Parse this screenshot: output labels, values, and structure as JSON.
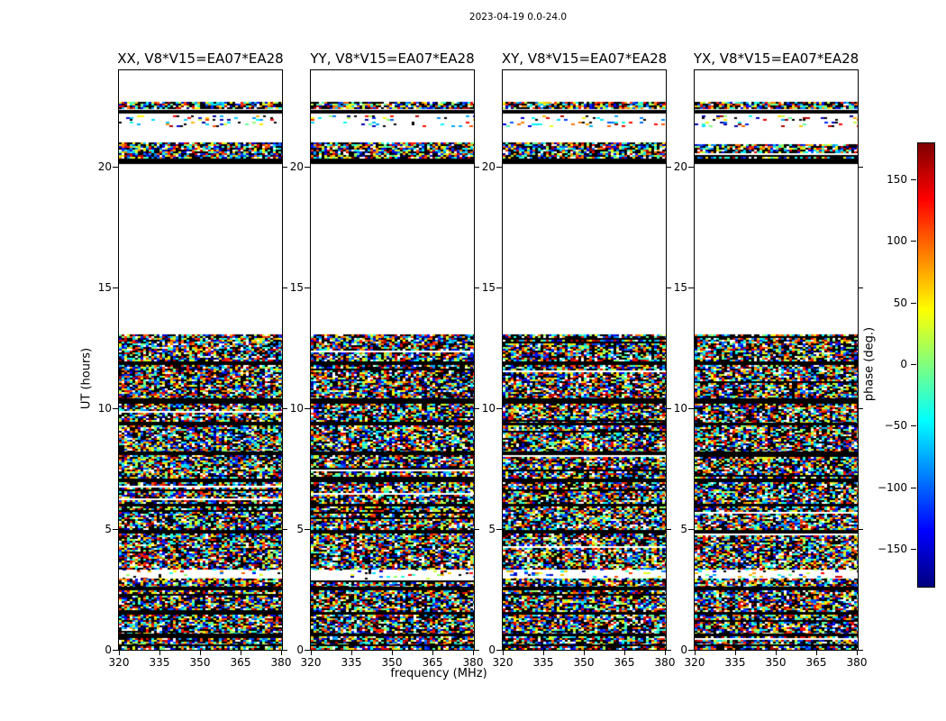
{
  "chart_data": {
    "type": "heatmap",
    "title": "2023-04-19 0.0-24.0",
    "xlabel": "frequency (MHz)",
    "ylabel": "UT (hours)",
    "xlim": [
      320,
      380
    ],
    "ylim": [
      0,
      24
    ],
    "xticks": [
      320,
      335,
      350,
      365,
      380
    ],
    "yticks": [
      0,
      5,
      10,
      15,
      20
    ],
    "panels": [
      {
        "id": "XX",
        "label": "XX, V8*V15=EA07*EA28"
      },
      {
        "id": "YY",
        "label": "YY, V8*V15=EA07*EA28"
      },
      {
        "id": "XY",
        "label": "XY, V8*V15=EA07*EA28"
      },
      {
        "id": "YX",
        "label": "YX, V8*V15=EA07*EA28"
      }
    ],
    "colorbar": {
      "label": "phase (deg.)",
      "vmin": -180,
      "vmax": 180,
      "ticks": [
        150,
        100,
        50,
        0,
        -50,
        -100,
        -150
      ],
      "colormap": "jet"
    },
    "values_description": "random interferometric phase speckle; bands give UT-hour ranges that contain data",
    "bands": [
      {
        "t0": 22.42,
        "t1": 22.7,
        "kind": "dense"
      },
      {
        "t0": 22.2,
        "t1": 22.36,
        "kind": "black"
      },
      {
        "t0": 21.95,
        "t1": 22.15,
        "kind": "sparse"
      },
      {
        "t0": 21.7,
        "t1": 21.88,
        "kind": "sparse"
      },
      {
        "t0": 20.35,
        "t1": 21.0,
        "kind": "dense"
      },
      {
        "t0": 20.1,
        "t1": 20.35,
        "kind": "black"
      },
      {
        "t0": 11.95,
        "t1": 13.06,
        "kind": "dense"
      },
      {
        "t0": 11.8,
        "t1": 11.95,
        "kind": "black"
      },
      {
        "t0": 10.4,
        "t1": 11.8,
        "kind": "dense"
      },
      {
        "t0": 10.2,
        "t1": 10.4,
        "kind": "black"
      },
      {
        "t0": 9.42,
        "t1": 10.2,
        "kind": "dense"
      },
      {
        "t0": 9.28,
        "t1": 9.42,
        "kind": "black"
      },
      {
        "t0": 8.22,
        "t1": 9.28,
        "kind": "dense"
      },
      {
        "t0": 8.05,
        "t1": 8.22,
        "kind": "black"
      },
      {
        "t0": 7.1,
        "t1": 8.05,
        "kind": "dense"
      },
      {
        "t0": 6.93,
        "t1": 7.1,
        "kind": "black"
      },
      {
        "t0": 6.06,
        "t1": 6.93,
        "kind": "dense"
      },
      {
        "t0": 5.92,
        "t1": 6.06,
        "kind": "black"
      },
      {
        "t0": 4.95,
        "t1": 5.92,
        "kind": "dense"
      },
      {
        "t0": 4.8,
        "t1": 4.95,
        "kind": "black"
      },
      {
        "t0": 3.37,
        "t1": 4.8,
        "kind": "dense"
      },
      {
        "t0": 2.95,
        "t1": 3.37,
        "kind": "sparse"
      },
      {
        "t0": 2.62,
        "t1": 2.95,
        "kind": "dense"
      },
      {
        "t0": 2.47,
        "t1": 2.62,
        "kind": "black"
      },
      {
        "t0": 1.58,
        "t1": 2.47,
        "kind": "dense"
      },
      {
        "t0": 1.45,
        "t1": 1.58,
        "kind": "black"
      },
      {
        "t0": 0.68,
        "t1": 1.45,
        "kind": "dense"
      },
      {
        "t0": 0.55,
        "t1": 0.68,
        "kind": "black"
      },
      {
        "t0": 0.23,
        "t1": 0.55,
        "kind": "dense"
      },
      {
        "t0": 0.16,
        "t1": 0.23,
        "kind": "black"
      },
      {
        "t0": 0.0,
        "t1": 0.16,
        "kind": "dense"
      }
    ]
  }
}
